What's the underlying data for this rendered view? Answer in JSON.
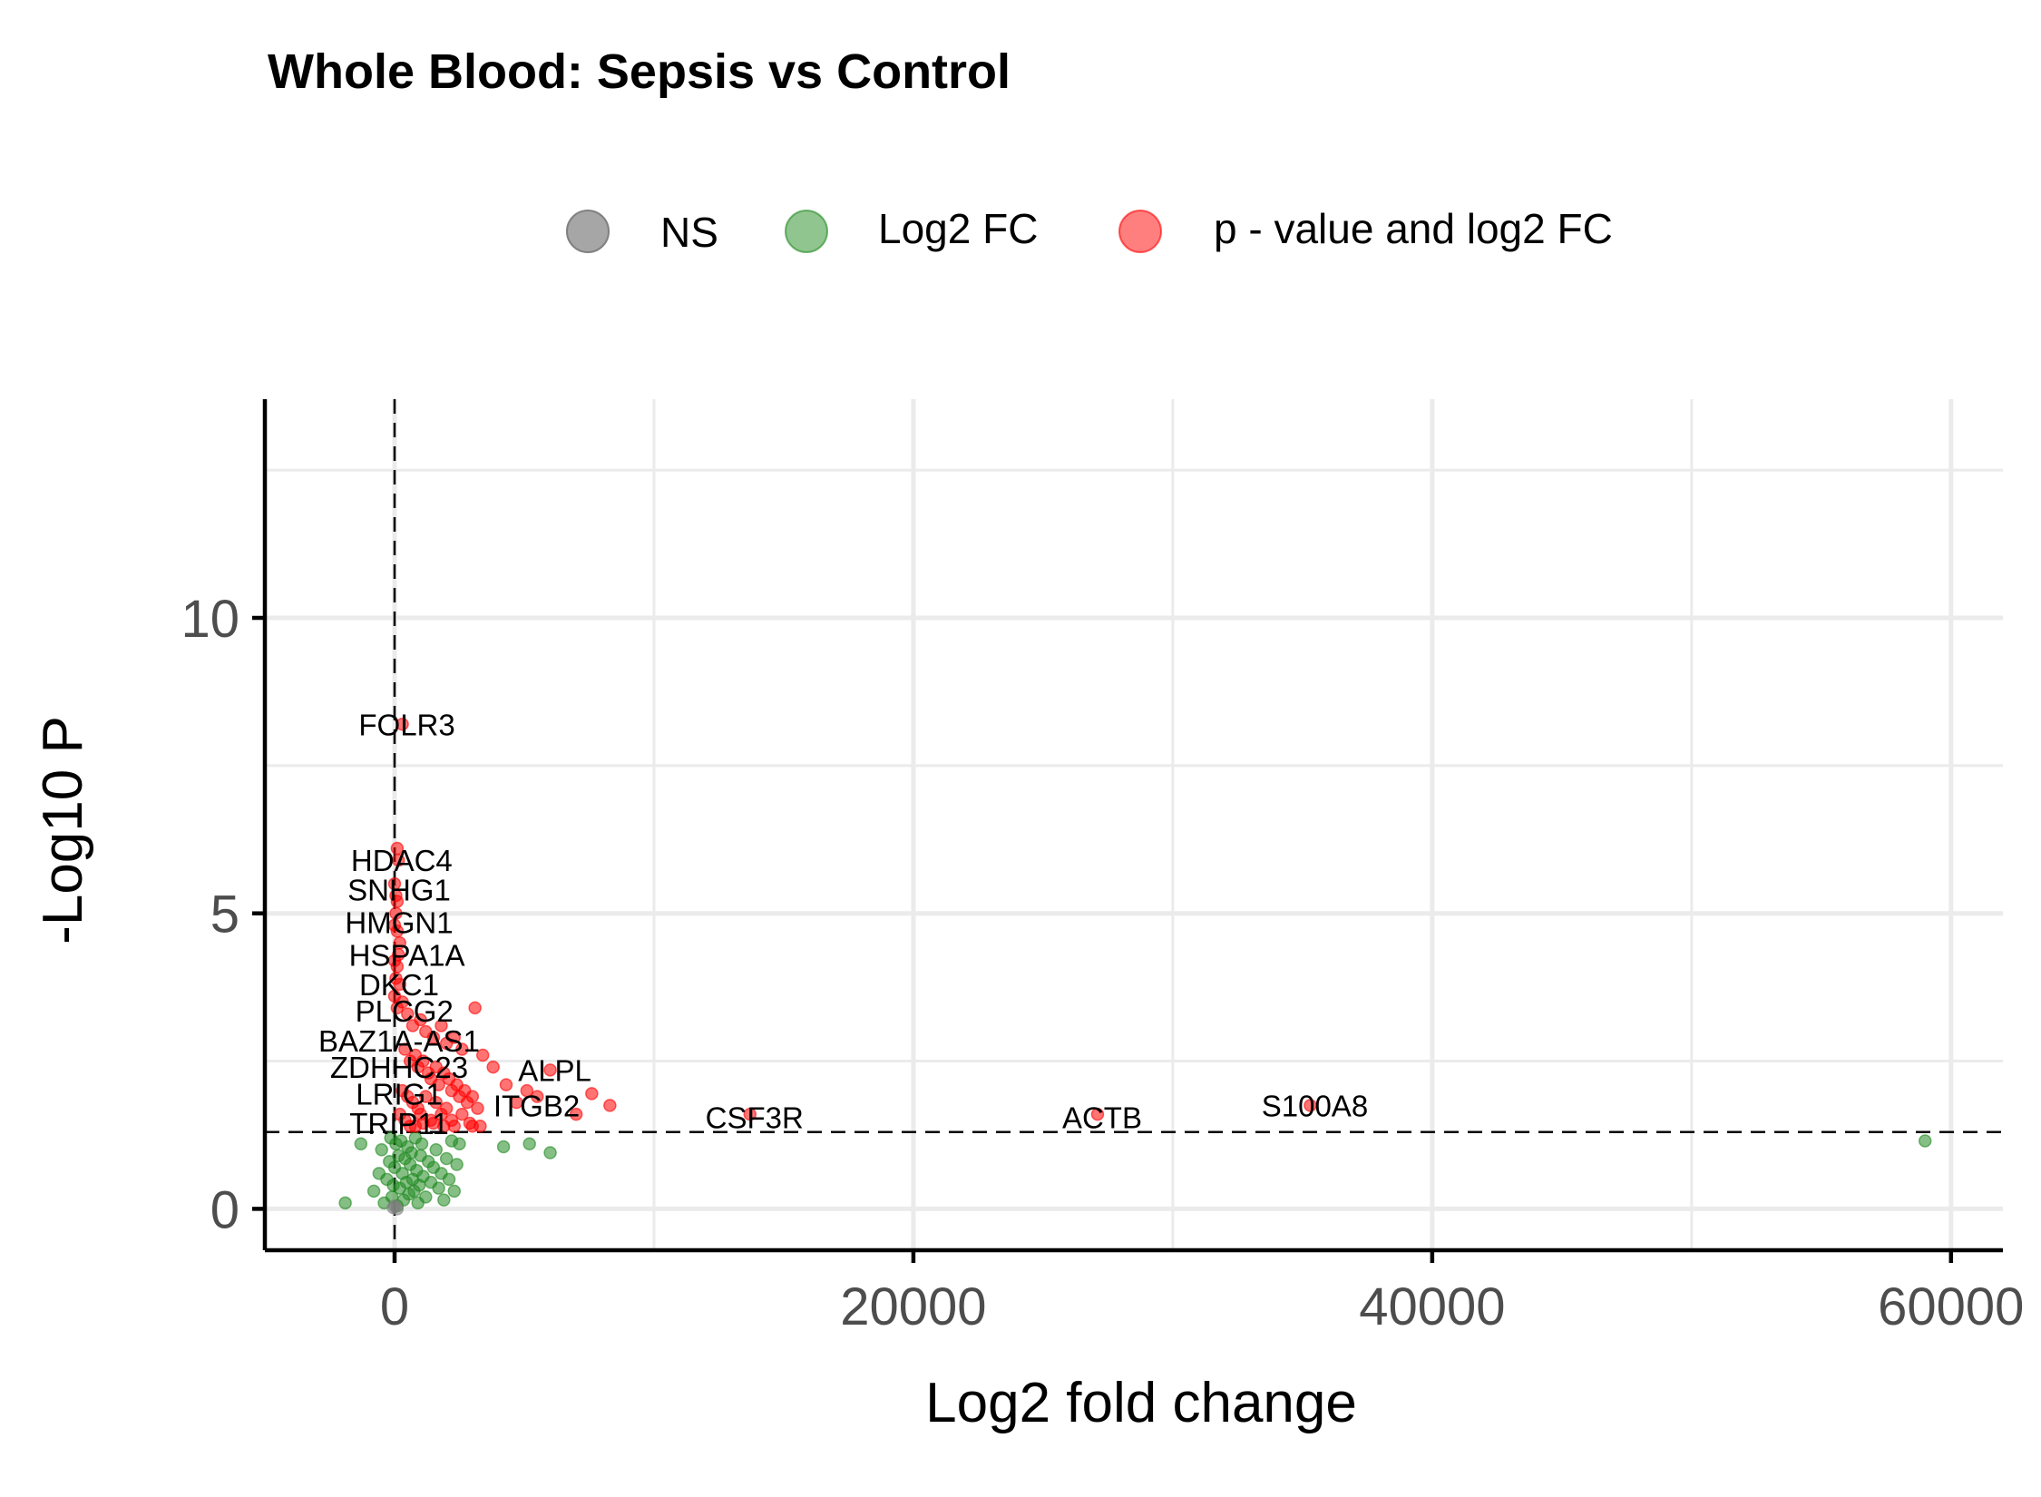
{
  "chart_data": {
    "type": "scatter",
    "title": "Whole Blood: Sepsis vs Control",
    "xlabel": "Log2 fold change",
    "ylabel": "-Log10 P",
    "xlim": [
      -5000,
      62000
    ],
    "ylim": [
      -0.7,
      13.7
    ],
    "x_ticks": [
      0,
      20000,
      40000,
      60000
    ],
    "x_tick_labels": [
      "0",
      "20000",
      "40000",
      "60000"
    ],
    "y_ticks": [
      0,
      5,
      10
    ],
    "y_tick_labels": [
      "0",
      "5",
      "10"
    ],
    "grid": true,
    "vline_cutoff": 0,
    "hline_cutoff": 1.3,
    "legend": {
      "position": "top",
      "entries": [
        {
          "key": "ns",
          "label": "NS",
          "color": "#808080"
        },
        {
          "key": "fc",
          "label": "Log2 FC",
          "color": "#228b22"
        },
        {
          "key": "pfc",
          "label": "p - value and log2 FC",
          "color": "#ff0000"
        }
      ]
    },
    "series": [
      {
        "name": "Log2 FC",
        "color": "#228b22",
        "points": [
          [
            -1900,
            0.1
          ],
          [
            -1300,
            1.1
          ],
          [
            -800,
            0.3
          ],
          [
            -600,
            0.6
          ],
          [
            -500,
            1.0
          ],
          [
            -400,
            0.1
          ],
          [
            -300,
            0.5
          ],
          [
            -200,
            0.8
          ],
          [
            -150,
            1.2
          ],
          [
            -100,
            0.2
          ],
          [
            -50,
            0.4
          ],
          [
            0,
            0.7
          ],
          [
            50,
            1.1
          ],
          [
            100,
            0.05
          ],
          [
            150,
            0.9
          ],
          [
            200,
            0.35
          ],
          [
            250,
            1.15
          ],
          [
            300,
            0.6
          ],
          [
            350,
            0.15
          ],
          [
            400,
            0.85
          ],
          [
            450,
            0.45
          ],
          [
            500,
            1.05
          ],
          [
            550,
            0.25
          ],
          [
            600,
            0.75
          ],
          [
            650,
            0.95
          ],
          [
            700,
            0.5
          ],
          [
            750,
            0.3
          ],
          [
            800,
            1.2
          ],
          [
            850,
            0.65
          ],
          [
            900,
            0.1
          ],
          [
            950,
            0.4
          ],
          [
            1000,
            0.9
          ],
          [
            1050,
            1.1
          ],
          [
            1100,
            0.55
          ],
          [
            1200,
            0.2
          ],
          [
            1300,
            0.8
          ],
          [
            1400,
            0.45
          ],
          [
            1500,
            0.7
          ],
          [
            1600,
            1.0
          ],
          [
            1700,
            0.35
          ],
          [
            1800,
            0.6
          ],
          [
            1900,
            0.15
          ],
          [
            2000,
            0.85
          ],
          [
            2100,
            0.5
          ],
          [
            2200,
            1.15
          ],
          [
            2300,
            0.3
          ],
          [
            2400,
            0.75
          ],
          [
            2500,
            1.1
          ],
          [
            4200,
            1.05
          ],
          [
            5200,
            1.1
          ],
          [
            6000,
            0.95
          ],
          [
            59000,
            1.15
          ]
        ]
      },
      {
        "name": "p - value and log2 FC",
        "color": "#ff0000",
        "points": [
          [
            300,
            8.2
          ],
          [
            100,
            6.1
          ],
          [
            150,
            5.9
          ],
          [
            0,
            5.5
          ],
          [
            50,
            5.3
          ],
          [
            100,
            5.2
          ],
          [
            50,
            5.0
          ],
          [
            0,
            4.8
          ],
          [
            100,
            4.7
          ],
          [
            200,
            4.5
          ],
          [
            150,
            4.3
          ],
          [
            0,
            4.2
          ],
          [
            100,
            4.1
          ],
          [
            50,
            3.9
          ],
          [
            200,
            3.8
          ],
          [
            0,
            3.6
          ],
          [
            300,
            3.5
          ],
          [
            100,
            3.4
          ],
          [
            500,
            3.3
          ],
          [
            700,
            3.1
          ],
          [
            1000,
            3.2
          ],
          [
            1200,
            3.0
          ],
          [
            1500,
            2.9
          ],
          [
            1800,
            3.1
          ],
          [
            2000,
            2.8
          ],
          [
            2300,
            2.9
          ],
          [
            2600,
            2.7
          ],
          [
            3100,
            3.4
          ],
          [
            3400,
            2.6
          ],
          [
            400,
            2.7
          ],
          [
            600,
            2.5
          ],
          [
            800,
            2.6
          ],
          [
            900,
            2.4
          ],
          [
            1100,
            2.5
          ],
          [
            1300,
            2.3
          ],
          [
            1400,
            2.2
          ],
          [
            1600,
            2.4
          ],
          [
            1700,
            2.1
          ],
          [
            1900,
            2.3
          ],
          [
            2100,
            2.2
          ],
          [
            2200,
            2.0
          ],
          [
            2400,
            2.1
          ],
          [
            2500,
            1.9
          ],
          [
            2700,
            2.0
          ],
          [
            2800,
            1.8
          ],
          [
            3000,
            1.9
          ],
          [
            3200,
            1.7
          ],
          [
            300,
            2.0
          ],
          [
            500,
            1.9
          ],
          [
            700,
            1.8
          ],
          [
            900,
            1.7
          ],
          [
            1000,
            1.6
          ],
          [
            1200,
            1.9
          ],
          [
            1400,
            1.5
          ],
          [
            1600,
            1.8
          ],
          [
            1800,
            1.6
          ],
          [
            2000,
            1.7
          ],
          [
            2200,
            1.5
          ],
          [
            2600,
            1.6
          ],
          [
            3000,
            1.4
          ],
          [
            3300,
            1.4
          ],
          [
            200,
            1.6
          ],
          [
            400,
            1.5
          ],
          [
            600,
            1.4
          ],
          [
            800,
            1.4
          ],
          [
            1100,
            1.45
          ],
          [
            1500,
            1.45
          ],
          [
            1900,
            1.4
          ],
          [
            2300,
            1.4
          ],
          [
            2900,
            1.45
          ],
          [
            3800,
            2.4
          ],
          [
            4300,
            2.1
          ],
          [
            4700,
            1.8
          ],
          [
            5100,
            2.0
          ],
          [
            5500,
            1.9
          ],
          [
            6000,
            2.35
          ],
          [
            7000,
            1.6
          ],
          [
            7600,
            1.95
          ],
          [
            8300,
            1.75
          ],
          [
            13700,
            1.6
          ],
          [
            27100,
            1.6
          ],
          [
            35300,
            1.75
          ]
        ]
      },
      {
        "name": "NS",
        "color": "#808080",
        "points": [
          [
            0,
            0.05
          ],
          [
            100,
            0.0
          ],
          [
            -50,
            0.02
          ]
        ]
      }
    ],
    "labels": [
      {
        "text": "FOLR3",
        "x": 300,
        "y": 8.2
      },
      {
        "text": "HDAC4",
        "x": 100,
        "y": 5.9
      },
      {
        "text": "SNHG1",
        "x": 0,
        "y": 5.4
      },
      {
        "text": "HMGN1",
        "x": 0,
        "y": 4.85
      },
      {
        "text": "HSPA1A",
        "x": 300,
        "y": 4.3
      },
      {
        "text": "DKC1",
        "x": 0,
        "y": 3.8
      },
      {
        "text": "PLCG2",
        "x": 200,
        "y": 3.35
      },
      {
        "text": "BAZ1A-AS1",
        "x": 0,
        "y": 2.85
      },
      {
        "text": "ZDHHC23",
        "x": 0,
        "y": 2.4
      },
      {
        "text": "ALPL",
        "x": 6000,
        "y": 2.35
      },
      {
        "text": "LRIG1",
        "x": 0,
        "y": 1.95
      },
      {
        "text": "ITGB2",
        "x": 5300,
        "y": 1.75
      },
      {
        "text": "TRIP11",
        "x": 0,
        "y": 1.45
      },
      {
        "text": "CSF3R",
        "x": 13700,
        "y": 1.55
      },
      {
        "text": "ACTB",
        "x": 27100,
        "y": 1.55
      },
      {
        "text": "S100A8",
        "x": 35300,
        "y": 1.75
      }
    ]
  }
}
